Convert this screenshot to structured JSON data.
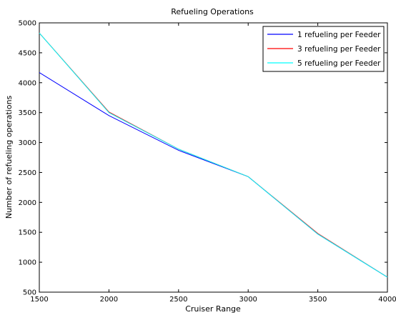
{
  "chart_data": {
    "type": "line",
    "title": "Refueling Operations",
    "xlabel": "Cruiser Range",
    "ylabel": "Number of refueling operations",
    "xlim": [
      1500,
      4000
    ],
    "ylim": [
      500,
      5000
    ],
    "xticks": [
      1500,
      2000,
      2500,
      3000,
      3500,
      4000
    ],
    "yticks": [
      500,
      1000,
      1500,
      2000,
      2500,
      3000,
      3500,
      4000,
      4500,
      5000
    ],
    "grid": false,
    "legend_position": "top-right",
    "series": [
      {
        "name": "1 refueling per Feeder",
        "color": "#0000ff",
        "x": [
          1500,
          2000,
          2500,
          3000,
          3500,
          4000
        ],
        "y": [
          4170,
          3450,
          2870,
          2430,
          1470,
          750
        ]
      },
      {
        "name": "3 refueling per Feeder",
        "color": "#ff0000",
        "x": [
          1500,
          2000,
          2500,
          3000,
          3500,
          4000
        ],
        "y": [
          4830,
          3510,
          2890,
          2430,
          1480,
          750
        ]
      },
      {
        "name": "5 refueling per Feeder",
        "color": "#00ffff",
        "x": [
          1500,
          2000,
          2500,
          3000,
          3500,
          4000
        ],
        "y": [
          4830,
          3500,
          2890,
          2430,
          1470,
          750
        ]
      }
    ]
  }
}
